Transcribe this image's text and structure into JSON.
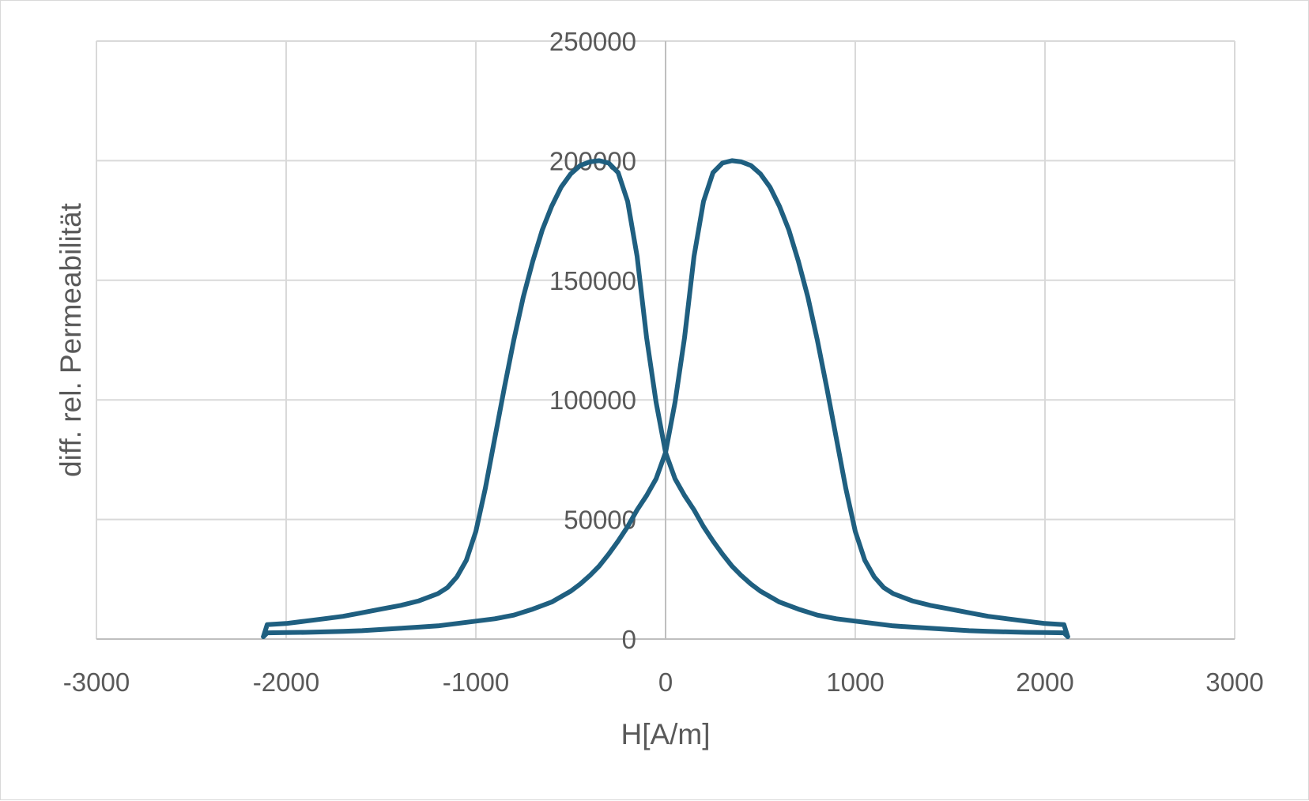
{
  "chart_data": {
    "type": "line",
    "xlabel": "H[A/m]",
    "ylabel": "diff. rel. Permeabilität",
    "xlim": [
      -3000,
      3000
    ],
    "ylim": [
      0,
      250000
    ],
    "x_ticks": [
      "-3000",
      "-2000",
      "-1000",
      "0",
      "1000",
      "2000",
      "3000"
    ],
    "y_ticks": [
      "0",
      "50000",
      "100000",
      "150000",
      "200000",
      "250000"
    ],
    "grid": true,
    "colors": {
      "series": "#1f5f80",
      "grid": "#d9d9d9",
      "text": "#595959"
    },
    "series": [
      {
        "points": [
          [
            2120,
            1000
          ],
          [
            2100,
            6000
          ],
          [
            2000,
            6500
          ],
          [
            1900,
            7500
          ],
          [
            1800,
            8500
          ],
          [
            1700,
            9500
          ],
          [
            1600,
            11000
          ],
          [
            1500,
            12500
          ],
          [
            1400,
            14000
          ],
          [
            1300,
            16000
          ],
          [
            1200,
            19000
          ],
          [
            1150,
            21500
          ],
          [
            1100,
            26000
          ],
          [
            1050,
            33000
          ],
          [
            1000,
            45000
          ],
          [
            950,
            63000
          ],
          [
            900,
            84000
          ],
          [
            850,
            105000
          ],
          [
            800,
            125000
          ],
          [
            750,
            143000
          ],
          [
            700,
            158000
          ],
          [
            650,
            171000
          ],
          [
            600,
            181000
          ],
          [
            550,
            189000
          ],
          [
            500,
            194500
          ],
          [
            450,
            198000
          ],
          [
            400,
            199500
          ],
          [
            350,
            200000
          ],
          [
            300,
            199000
          ],
          [
            250,
            195000
          ],
          [
            200,
            183000
          ],
          [
            150,
            160000
          ],
          [
            100,
            126000
          ],
          [
            50,
            99000
          ],
          [
            0,
            78000
          ],
          [
            -50,
            67000
          ],
          [
            -100,
            60000
          ],
          [
            -150,
            54000
          ],
          [
            -200,
            47000
          ],
          [
            -250,
            41000
          ],
          [
            -300,
            35500
          ],
          [
            -350,
            30500
          ],
          [
            -400,
            26500
          ],
          [
            -450,
            23000
          ],
          [
            -500,
            20000
          ],
          [
            -600,
            15500
          ],
          [
            -700,
            12500
          ],
          [
            -800,
            10000
          ],
          [
            -900,
            8500
          ],
          [
            -1000,
            7500
          ],
          [
            -1100,
            6500
          ],
          [
            -1200,
            5500
          ],
          [
            -1300,
            5000
          ],
          [
            -1400,
            4500
          ],
          [
            -1500,
            4000
          ],
          [
            -1600,
            3500
          ],
          [
            -1700,
            3200
          ],
          [
            -1800,
            3000
          ],
          [
            -1900,
            2800
          ],
          [
            -2000,
            2700
          ],
          [
            -2100,
            2600
          ],
          [
            -2120,
            1000
          ]
        ]
      },
      {
        "points": [
          [
            -2120,
            1000
          ],
          [
            -2100,
            6000
          ],
          [
            -2000,
            6500
          ],
          [
            -1900,
            7500
          ],
          [
            -1800,
            8500
          ],
          [
            -1700,
            9500
          ],
          [
            -1600,
            11000
          ],
          [
            -1500,
            12500
          ],
          [
            -1400,
            14000
          ],
          [
            -1300,
            16000
          ],
          [
            -1200,
            19000
          ],
          [
            -1150,
            21500
          ],
          [
            -1100,
            26000
          ],
          [
            -1050,
            33000
          ],
          [
            -1000,
            45000
          ],
          [
            -950,
            63000
          ],
          [
            -900,
            84000
          ],
          [
            -850,
            105000
          ],
          [
            -800,
            125000
          ],
          [
            -750,
            143000
          ],
          [
            -700,
            158000
          ],
          [
            -650,
            171000
          ],
          [
            -600,
            181000
          ],
          [
            -550,
            189000
          ],
          [
            -500,
            194500
          ],
          [
            -450,
            198000
          ],
          [
            -400,
            199500
          ],
          [
            -350,
            200000
          ],
          [
            -300,
            199000
          ],
          [
            -250,
            195000
          ],
          [
            -200,
            183000
          ],
          [
            -150,
            160000
          ],
          [
            -100,
            126000
          ],
          [
            -50,
            99000
          ],
          [
            0,
            78000
          ],
          [
            50,
            67000
          ],
          [
            100,
            60000
          ],
          [
            150,
            54000
          ],
          [
            200,
            47000
          ],
          [
            250,
            41000
          ],
          [
            300,
            35500
          ],
          [
            350,
            30500
          ],
          [
            400,
            26500
          ],
          [
            450,
            23000
          ],
          [
            500,
            20000
          ],
          [
            600,
            15500
          ],
          [
            700,
            12500
          ],
          [
            800,
            10000
          ],
          [
            900,
            8500
          ],
          [
            1000,
            7500
          ],
          [
            1100,
            6500
          ],
          [
            1200,
            5500
          ],
          [
            1300,
            5000
          ],
          [
            1400,
            4500
          ],
          [
            1500,
            4000
          ],
          [
            1600,
            3500
          ],
          [
            1700,
            3200
          ],
          [
            1800,
            3000
          ],
          [
            1900,
            2800
          ],
          [
            2000,
            2700
          ],
          [
            2100,
            2600
          ],
          [
            2120,
            1000
          ]
        ]
      }
    ]
  }
}
